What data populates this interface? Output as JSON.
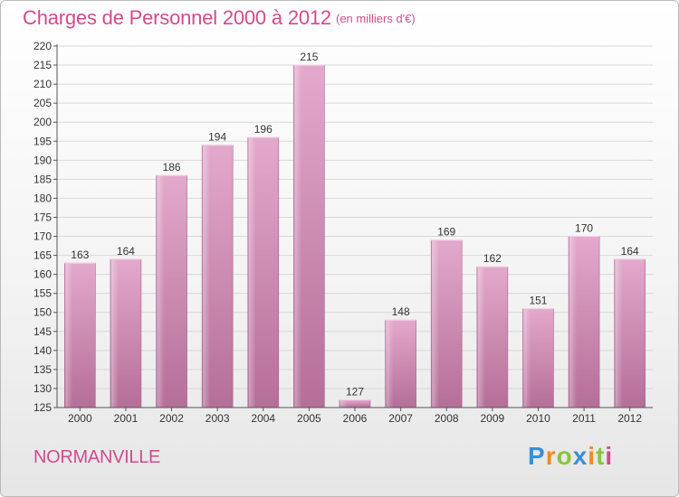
{
  "title": "Charges de Personnel 2000 à 2012",
  "subtitle": "(en milliers d'€)",
  "commune": "NORMANVILLE",
  "logo": {
    "letters": [
      {
        "char": "P",
        "color": "#3a8fd6"
      },
      {
        "char": "r",
        "color": "#f08c1e"
      },
      {
        "char": "o",
        "color": "#8cc43c"
      },
      {
        "char": "x",
        "color": "#3a8fd6"
      },
      {
        "char": "i",
        "color": "#f08c1e"
      },
      {
        "char": "t",
        "color": "#8cc43c"
      },
      {
        "char": "i",
        "color": "#d14b8d"
      }
    ]
  },
  "colors": {
    "accent": "#d14b8d",
    "bar": "#c978a8",
    "grid": "#d8d8d8"
  },
  "chart_data": {
    "type": "bar",
    "categories": [
      "2000",
      "2001",
      "2002",
      "2003",
      "2004",
      "2005",
      "2006",
      "2007",
      "2008",
      "2009",
      "2010",
      "2011",
      "2012"
    ],
    "values": [
      163,
      164,
      186,
      194,
      196,
      215,
      127,
      148,
      169,
      162,
      151,
      170,
      164
    ],
    "title": "Charges de Personnel 2000 à 2012",
    "ylim": [
      125,
      220
    ],
    "yticks": [
      125,
      130,
      135,
      140,
      145,
      150,
      155,
      160,
      165,
      170,
      175,
      180,
      185,
      190,
      195,
      200,
      205,
      210,
      215,
      220
    ],
    "grid": true,
    "legend": "none"
  }
}
